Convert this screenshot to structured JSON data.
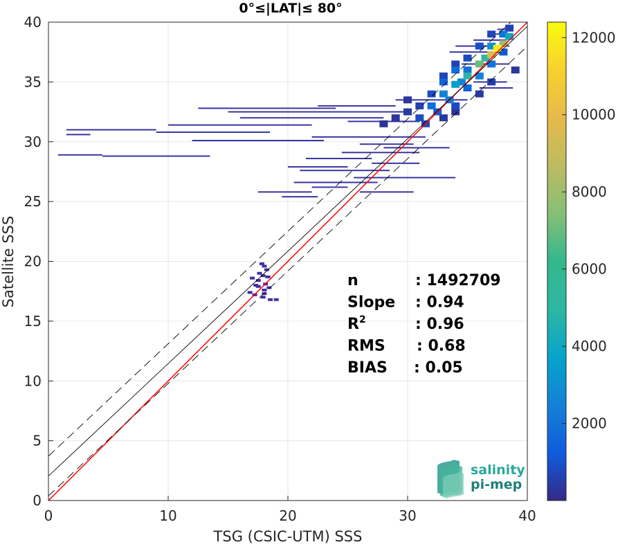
{
  "chart_data": {
    "type": "heatmap",
    "title": "0°≤|LAT|≤ 80°",
    "xlabel": "TSG (CSIC-UTM) SSS",
    "ylabel": "Satellite SSS",
    "xlim": [
      0,
      40
    ],
    "ylim": [
      0,
      40
    ],
    "xticks": [
      "0",
      "10",
      "20",
      "30",
      "40"
    ],
    "yticks": [
      "0",
      "5",
      "10",
      "15",
      "20",
      "25",
      "30",
      "35",
      "40"
    ],
    "grid": true,
    "colorbar": {
      "min": 0,
      "max": 12400,
      "ticks": [
        "2000",
        "4000",
        "6000",
        "8000",
        "10000",
        "12000"
      ],
      "colormap": "parula"
    },
    "lines": [
      {
        "name": "one-to-one",
        "color": "#ff0000",
        "style": "solid",
        "slope": 1.0,
        "intercept": 0.0
      },
      {
        "name": "fit",
        "color": "#000000",
        "style": "solid",
        "slope": 0.94,
        "intercept": 2.05
      },
      {
        "name": "fit-plus-2rms",
        "color": "#000000",
        "style": "dashed",
        "slope": 0.94,
        "intercept": 3.71
      },
      {
        "name": "fit-minus-2rms",
        "color": "#000000",
        "style": "dashed",
        "slope": 0.94,
        "intercept": 0.39
      }
    ],
    "stats": [
      {
        "label": "n",
        "value": ": 1492709"
      },
      {
        "label": "Slope",
        "value": ": 0.94"
      },
      {
        "label": "R",
        "sup": "2",
        "value": ": 0.96"
      },
      {
        "label": "RMS",
        "value": ": 0.68"
      },
      {
        "label": "BIAS",
        "value": ": 0.05"
      }
    ],
    "density_points": [
      [
        32,
        33,
        1800
      ],
      [
        33,
        34,
        2500
      ],
      [
        34,
        34.8,
        3500
      ],
      [
        35,
        35.5,
        4800
      ],
      [
        36,
        36.5,
        7000
      ],
      [
        37,
        37.3,
        9500
      ],
      [
        37.5,
        37.8,
        12000
      ],
      [
        38,
        38.2,
        8000
      ],
      [
        38.5,
        38.8,
        4000
      ],
      [
        33,
        35,
        1500
      ],
      [
        34,
        36,
        1800
      ],
      [
        35,
        36,
        2000
      ],
      [
        33.5,
        33.5,
        2200
      ],
      [
        34.5,
        35,
        2600
      ],
      [
        36.5,
        37,
        5000
      ],
      [
        37,
        38,
        3000
      ],
      [
        38,
        39,
        2000
      ],
      [
        31,
        32,
        900
      ],
      [
        31.5,
        31.5,
        700
      ],
      [
        32.5,
        32.5,
        1200
      ],
      [
        34,
        33,
        800
      ],
      [
        35,
        34.5,
        1500
      ],
      [
        36,
        35.5,
        2500
      ],
      [
        37,
        36.5,
        2000
      ],
      [
        38,
        37.5,
        1200
      ],
      [
        32,
        34,
        900
      ],
      [
        33,
        35.5,
        700
      ],
      [
        34,
        36.5,
        600
      ],
      [
        35,
        37,
        800
      ],
      [
        36,
        38,
        900
      ],
      [
        37,
        39,
        700
      ],
      [
        38.5,
        39.5,
        600
      ],
      [
        30,
        32.5,
        400
      ],
      [
        29,
        32,
        300
      ],
      [
        28,
        31.5,
        200
      ],
      [
        31,
        33,
        600
      ],
      [
        30,
        33.5,
        300
      ],
      [
        33,
        32,
        300
      ],
      [
        34,
        32.5,
        250
      ],
      [
        36,
        34,
        400
      ],
      [
        37,
        35,
        500
      ],
      [
        39,
        36,
        300
      ]
    ],
    "streaks": [
      {
        "y": 39.4,
        "x0": 37.5,
        "x1": 38.8
      },
      {
        "y": 39.0,
        "x0": 36.8,
        "x1": 38.5
      },
      {
        "y": 38.5,
        "x0": 35.5,
        "x1": 38.2
      },
      {
        "y": 38.0,
        "x0": 34.0,
        "x1": 38.5
      },
      {
        "y": 37.5,
        "x0": 33.5,
        "x1": 38.0
      },
      {
        "y": 36.5,
        "x0": 34.5,
        "x1": 38.5
      },
      {
        "y": 35.0,
        "x0": 35.5,
        "x1": 38.3
      },
      {
        "y": 34.5,
        "x0": 36.0,
        "x1": 38.8
      },
      {
        "y": 33.5,
        "x0": 29.0,
        "x1": 35.0
      },
      {
        "y": 33.0,
        "x0": 22.5,
        "x1": 29.0
      },
      {
        "y": 32.8,
        "x0": 12.5,
        "x1": 24.0
      },
      {
        "y": 32.5,
        "x0": 15.0,
        "x1": 30.0
      },
      {
        "y": 32.0,
        "x0": 16.0,
        "x1": 28.0
      },
      {
        "y": 31.7,
        "x0": 25.0,
        "x1": 31.0
      },
      {
        "y": 31.4,
        "x0": 10.0,
        "x1": 22.0
      },
      {
        "y": 31.0,
        "x0": 1.5,
        "x1": 9.0
      },
      {
        "y": 30.8,
        "x0": 9.0,
        "x1": 18.5
      },
      {
        "y": 30.6,
        "x0": 1.5,
        "x1": 3.5
      },
      {
        "y": 30.4,
        "x0": 22.0,
        "x1": 31.5
      },
      {
        "y": 30.1,
        "x0": 12.0,
        "x1": 23.0
      },
      {
        "y": 29.8,
        "x0": 26.0,
        "x1": 30.5
      },
      {
        "y": 29.5,
        "x0": 28.0,
        "x1": 33.5
      },
      {
        "y": 29.1,
        "x0": 24.5,
        "x1": 31.0
      },
      {
        "y": 28.9,
        "x0": 0.8,
        "x1": 4.5
      },
      {
        "y": 28.8,
        "x0": 4.5,
        "x1": 13.5
      },
      {
        "y": 28.6,
        "x0": 21.5,
        "x1": 27.0
      },
      {
        "y": 28.2,
        "x0": 27.0,
        "x1": 31.0
      },
      {
        "y": 27.9,
        "x0": 20.0,
        "x1": 25.0
      },
      {
        "y": 27.6,
        "x0": 21.0,
        "x1": 28.5
      },
      {
        "y": 27.0,
        "x0": 25.5,
        "x1": 34.0
      },
      {
        "y": 26.6,
        "x0": 20.5,
        "x1": 27.5
      },
      {
        "y": 26.2,
        "x0": 22.0,
        "x1": 25.0
      },
      {
        "y": 25.8,
        "x0": 26.0,
        "x1": 30.5
      },
      {
        "y": 25.8,
        "x0": 17.5,
        "x1": 22.0
      },
      {
        "y": 25.4,
        "x0": 19.5,
        "x1": 22.5
      }
    ],
    "cluster_points": [
      [
        17.8,
        19.8
      ],
      [
        18.0,
        19.6
      ],
      [
        18.2,
        19.3
      ],
      [
        17.6,
        19.0
      ],
      [
        17.9,
        18.8
      ],
      [
        18.3,
        18.7
      ],
      [
        17.0,
        18.6
      ],
      [
        17.5,
        18.4
      ],
      [
        18.1,
        18.1
      ],
      [
        17.3,
        18.0
      ],
      [
        18.4,
        17.8
      ],
      [
        18.0,
        17.6
      ],
      [
        16.8,
        17.4
      ],
      [
        17.2,
        17.2
      ],
      [
        17.9,
        17.0
      ],
      [
        18.5,
        16.8
      ],
      [
        19.0,
        16.8
      ],
      [
        17.5,
        17.9
      ],
      [
        18.0,
        17.3
      ]
    ]
  },
  "logo": {
    "line1": "salinity",
    "line2": "pi-mep"
  }
}
